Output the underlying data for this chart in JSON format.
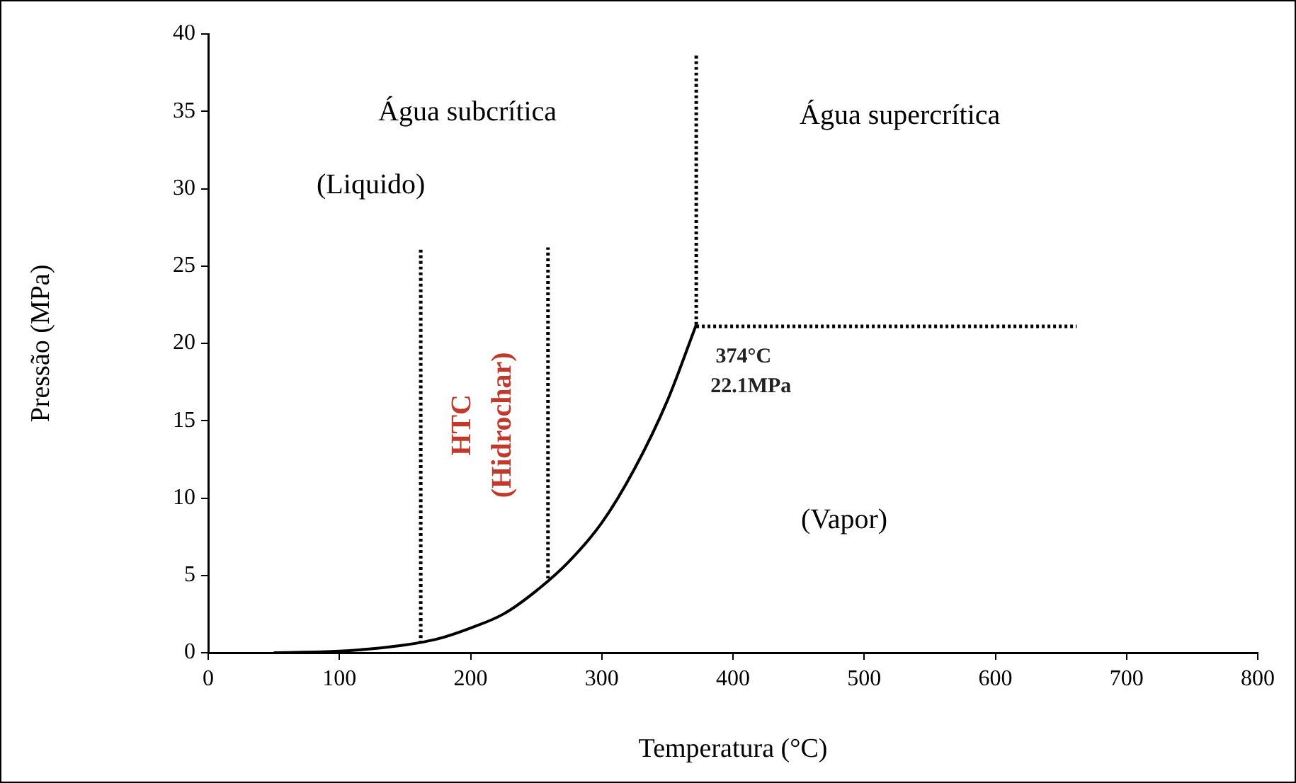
{
  "chart_data": {
    "type": "line",
    "xlabel": "Temperatura (°C)",
    "ylabel": "Pressão (MPa)",
    "xlim": [
      0,
      800
    ],
    "xticks": [
      0,
      100,
      200,
      300,
      400,
      500,
      600,
      700,
      800
    ],
    "ylim": [
      0,
      40
    ],
    "yticks": [
      0,
      5,
      10,
      15,
      20,
      25,
      30,
      35,
      40
    ],
    "grid": false,
    "legend": false,
    "marker": "none",
    "series": [
      {
        "color": "#000000",
        "line_style": "solid",
        "x": [
          50,
          100,
          130,
          150,
          175,
          200,
          225,
          250,
          275,
          300,
          325,
          350,
          372
        ],
        "values": [
          0,
          0.1,
          0.3,
          0.5,
          0.9,
          1.6,
          2.5,
          4,
          5.9,
          8.4,
          11.9,
          16.3,
          21.2
        ]
      },
      {
        "color": "#000000",
        "line_style": "dotted",
        "x": [
          162,
          162
        ],
        "values": [
          0.6,
          26.2
        ]
      },
      {
        "color": "#000000",
        "line_style": "dotted",
        "x": [
          259,
          259
        ],
        "values": [
          4.8,
          26.2
        ]
      },
      {
        "color": "#000000",
        "line_style": "dotted",
        "x": [
          372,
          372
        ],
        "values": [
          21.2,
          38.6
        ]
      },
      {
        "color": "#000000",
        "line_style": "dotted",
        "x": [
          372,
          662
        ],
        "values": [
          21.1,
          21.1
        ]
      }
    ],
    "annotations": [
      "Água subcrítica",
      "(Liquido)",
      "Água supercrítica",
      "HTC",
      "(Hidrochar)",
      "374°C",
      "22.1MPa",
      "(Vapor)"
    ]
  }
}
